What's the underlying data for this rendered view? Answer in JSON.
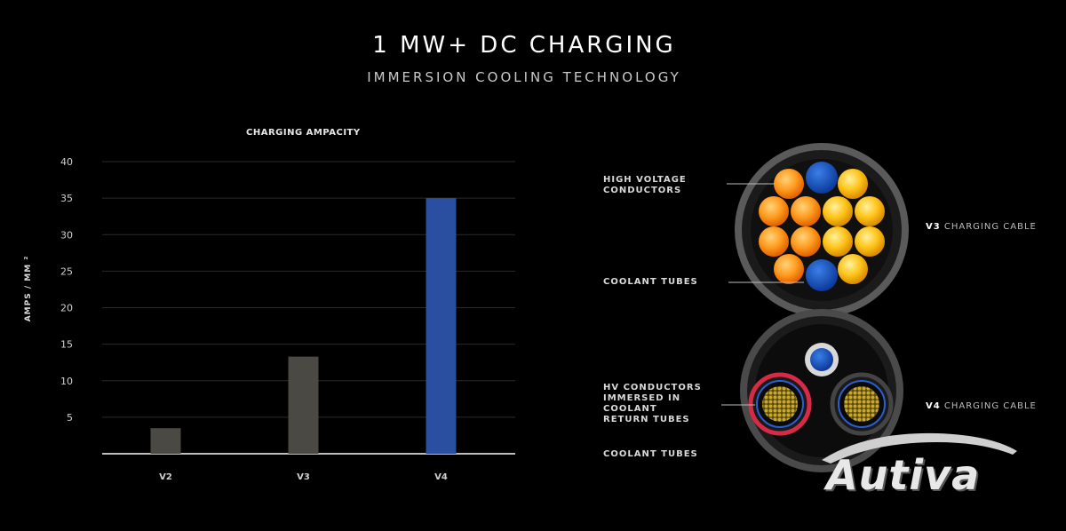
{
  "header": {
    "title": "1 MW+ DC CHARGING",
    "subtitle": "IMMERSION COOLING TECHNOLOGY"
  },
  "chart_data": {
    "type": "bar",
    "title": "CHARGING AMPACITY",
    "ylabel": "AMPS / MM ²",
    "xlabel": "",
    "categories": [
      "V2",
      "V3",
      "V4"
    ],
    "values": [
      3.5,
      13.3,
      35
    ],
    "colors": [
      "#4a4944",
      "#4a4944",
      "#2a4ea0"
    ],
    "ylim": [
      0,
      40
    ],
    "yticks": [
      "5",
      "10",
      "15",
      "20",
      "25",
      "30",
      "35",
      "40"
    ],
    "grid": true
  },
  "diagram": {
    "callouts": {
      "hv_conductors": "HIGH VOLTAGE CONDUCTORS",
      "coolant_tubes_top": "COOLANT TUBES",
      "hv_immersed": "HV CONDUCTORS IMMERSED IN COOLANT RETURN TUBES",
      "coolant_tubes_bottom": "COOLANT TUBES"
    },
    "cables": {
      "v3_name": "V3",
      "v3_suffix": "CHARGING CABLE",
      "v4_name": "V4",
      "v4_suffix": "CHARGING CABLE"
    }
  },
  "watermark": {
    "text": "Autiva"
  }
}
